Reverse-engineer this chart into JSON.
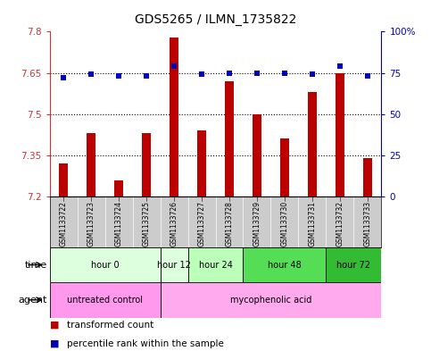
{
  "title": "GDS5265 / ILMN_1735822",
  "samples": [
    "GSM1133722",
    "GSM1133723",
    "GSM1133724",
    "GSM1133725",
    "GSM1133726",
    "GSM1133727",
    "GSM1133728",
    "GSM1133729",
    "GSM1133730",
    "GSM1133731",
    "GSM1133732",
    "GSM1133733"
  ],
  "transformed_counts": [
    7.32,
    7.43,
    7.26,
    7.43,
    7.78,
    7.44,
    7.62,
    7.5,
    7.41,
    7.58,
    7.65,
    7.34
  ],
  "percentile_ranks": [
    72,
    74,
    73,
    73,
    79,
    74,
    75,
    75,
    75,
    74,
    79,
    73
  ],
  "bar_color": "#bb0000",
  "dot_color": "#0000bb",
  "ylim_left": [
    7.2,
    7.8
  ],
  "ylim_right": [
    0,
    100
  ],
  "yticks_left": [
    7.2,
    7.35,
    7.5,
    7.65,
    7.8
  ],
  "yticks_right": [
    0,
    25,
    50,
    75,
    100
  ],
  "ytick_labels_left": [
    "7.2",
    "7.35",
    "7.5",
    "7.65",
    "7.8"
  ],
  "ytick_labels_right": [
    "0",
    "25",
    "50",
    "75",
    "100%"
  ],
  "hgrid_values": [
    7.35,
    7.5,
    7.65
  ],
  "time_groups": [
    {
      "label": "hour 0",
      "start": 0,
      "end": 3,
      "color": "#ddffdd"
    },
    {
      "label": "hour 12",
      "start": 4,
      "end": 4,
      "color": "#ddffdd"
    },
    {
      "label": "hour 24",
      "start": 5,
      "end": 6,
      "color": "#bbffbb"
    },
    {
      "label": "hour 48",
      "start": 7,
      "end": 9,
      "color": "#55dd55"
    },
    {
      "label": "hour 72",
      "start": 10,
      "end": 11,
      "color": "#33bb33"
    }
  ],
  "agent_groups": [
    {
      "label": "untreated control",
      "start": 0,
      "end": 3,
      "color": "#ff99ee"
    },
    {
      "label": "mycophenolic acid",
      "start": 4,
      "end": 11,
      "color": "#ffaaee"
    }
  ],
  "sample_bg_color": "#cccccc",
  "left_axis_color": "#cc3333",
  "right_axis_color": "#0000cc",
  "legend_items": [
    {
      "label": "transformed count",
      "color": "#bb0000"
    },
    {
      "label": "percentile rank within the sample",
      "color": "#0000bb"
    }
  ]
}
